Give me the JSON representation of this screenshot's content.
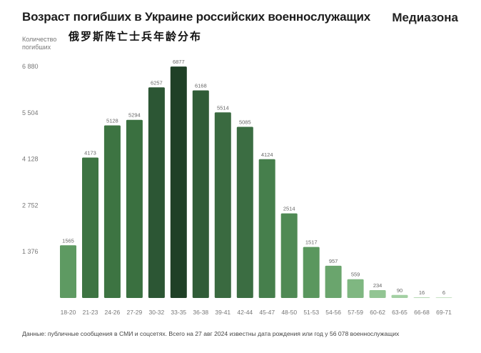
{
  "header": {
    "title": "Возраст погибших в Украине российских военнослужащих",
    "brand": "Медиазона",
    "ylabel_line1": "Количество",
    "ylabel_line2": "погибших",
    "subtitle_cn": "俄罗斯阵亡士兵年龄分布"
  },
  "footnote": "Данные: публичные сообщения в СМИ и соцсетях. Всего на 27 авг 2024 известны дата рождения или год у 56 078 военнослужащих",
  "chart_data": {
    "type": "bar",
    "ylabel": "Количество погибших",
    "yticks": [
      "1 376",
      "2 752",
      "4 128",
      "5 504",
      "6 880"
    ],
    "ylim": [
      0,
      6880
    ],
    "grid": false,
    "categories": [
      "18-20",
      "21-23",
      "24-26",
      "27-29",
      "30-32",
      "33-35",
      "36-38",
      "39-41",
      "42-44",
      "45-47",
      "48-50",
      "51-53",
      "54-56",
      "57-59",
      "60-62",
      "63-65",
      "66-68",
      "69-71"
    ],
    "values": [
      1565,
      4173,
      5128,
      5294,
      6257,
      6877,
      6168,
      5514,
      5085,
      4124,
      2514,
      1517,
      957,
      559,
      234,
      90,
      16,
      6
    ],
    "data_labels": [
      "1565",
      "4173",
      "5128",
      "5294",
      "6257",
      "6877",
      "6168",
      "5514",
      "5085",
      "4124",
      "2514",
      "1517",
      "957",
      "559",
      "234",
      "90",
      "16",
      "6"
    ],
    "colors": [
      "#5e9a62",
      "#3d7442",
      "#3d7442",
      "#3a7040",
      "#2c5634",
      "#1f4026",
      "#305c37",
      "#3a6a40",
      "#3b6d42",
      "#467f4c",
      "#4f8a54",
      "#5a975e",
      "#6aa56d",
      "#7fb781",
      "#92c593",
      "#a3d0a3",
      "#b6dab5",
      "#c6e2c4"
    ]
  }
}
